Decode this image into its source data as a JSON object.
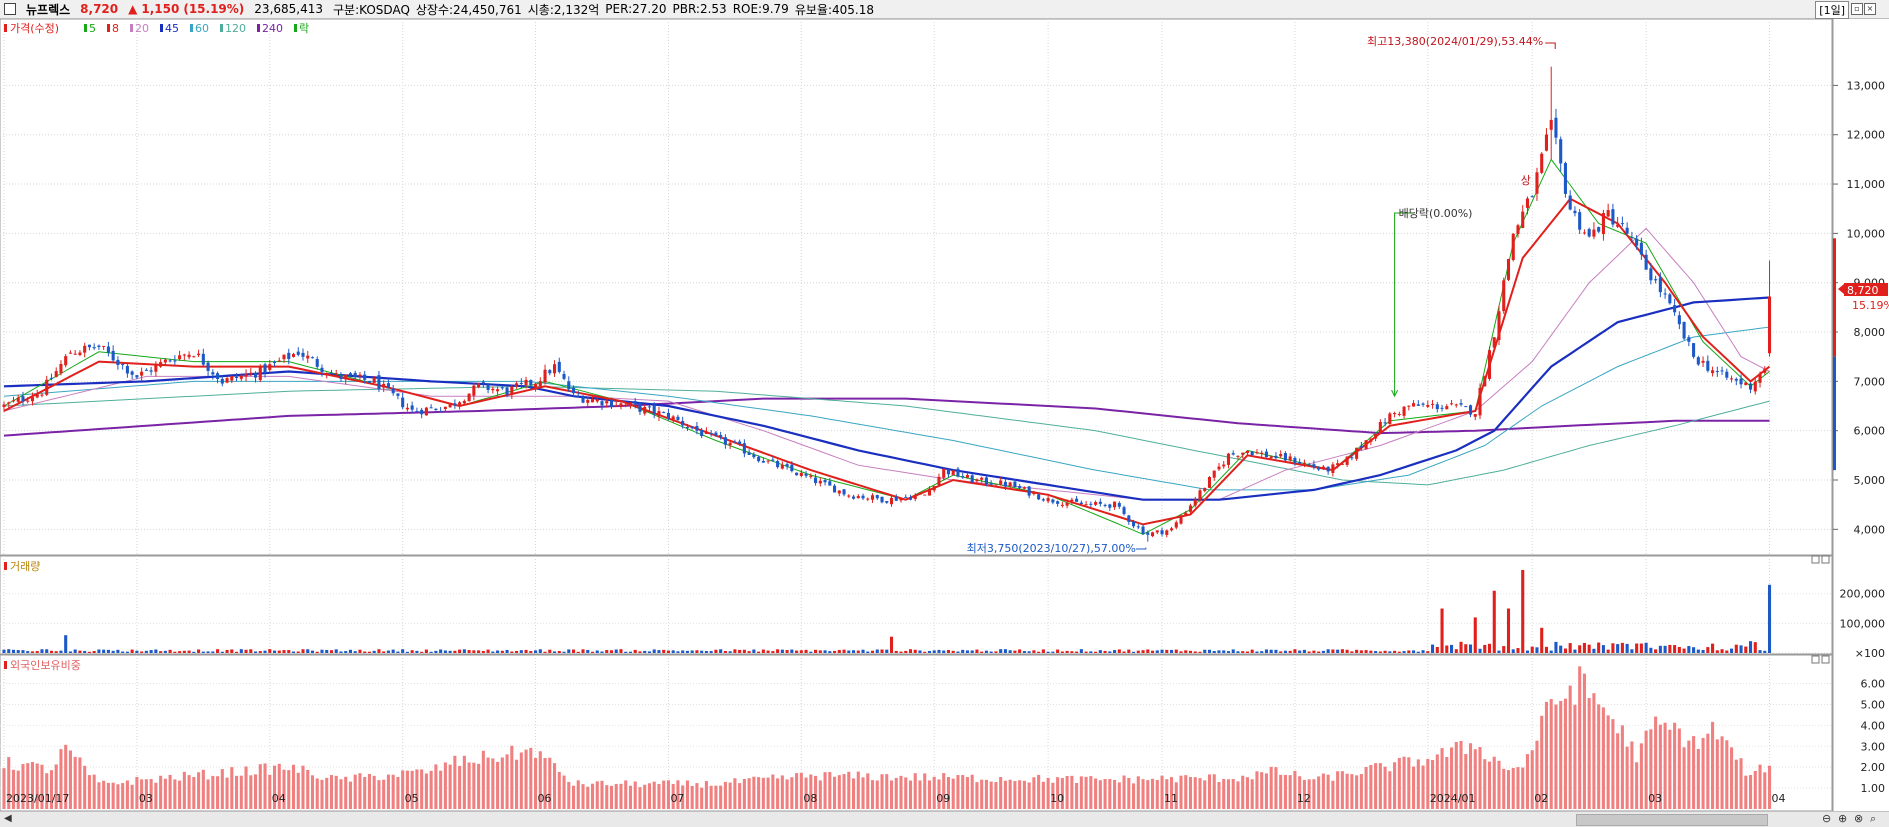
{
  "header": {
    "stock_name": "뉴프렉스",
    "price": "8,720",
    "change_arrow": "▲",
    "change": "1,150",
    "change_pct": "(15.19%)",
    "volume": "23,685,413",
    "market": "구분:KOSDAQ",
    "shares": "상장수:24,450,761",
    "market_cap": "시총:2,132억",
    "per": "PER:27.20",
    "pbr": "PBR:2.53",
    "roe": "ROE:9.79",
    "reserve": "유보율:405.18",
    "period": "[1일]"
  },
  "legend": {
    "price_label": "가격(수정)",
    "ma_items": [
      {
        "label": "5",
        "color": "#16a816"
      },
      {
        "label": "8",
        "color": "#e0201c"
      },
      {
        "label": "20",
        "color": "#c77fc0"
      },
      {
        "label": "45",
        "color": "#1a2fbf"
      },
      {
        "label": "60",
        "color": "#3aa6c2"
      },
      {
        "label": "120",
        "color": "#4fae9a"
      },
      {
        "label": "240",
        "color": "#7a23a6"
      },
      {
        "label": "락",
        "color": "#16a816"
      }
    ],
    "volume_label": "거래량",
    "foreign_label": "외국인보유비중"
  },
  "annotations": {
    "high": "최고13,380(2024/01/29),53.44%",
    "low": "최저3,750(2023/10/27),57.00%",
    "dividend": "배당락(0.00%)",
    "sang": "상"
  },
  "price_tag": {
    "price": "8,720",
    "pct": "15.19%"
  },
  "chart_data": {
    "type": "candlestick",
    "title": "",
    "y_ticks": [
      "13,000",
      "12,000",
      "11,000",
      "10,000",
      "9,000",
      "8,000",
      "7,000",
      "6,000",
      "5,000",
      "4,000"
    ],
    "y_tick_values": [
      13000,
      12000,
      11000,
      10000,
      9000,
      8000,
      7000,
      6000,
      5000,
      4000
    ],
    "ylim": [
      3500,
      13900
    ],
    "volume_ticks": [
      "200,000",
      "100,000",
      "×100"
    ],
    "volume_tick_values": [
      200000,
      100000,
      0
    ],
    "volume_ylim": [
      0,
      290000
    ],
    "foreign_ticks": [
      "6.00",
      "5.00",
      "4.00",
      "3.00",
      "2.00",
      "1.00"
    ],
    "foreign_tick_values": [
      6,
      5,
      4,
      3,
      2,
      1
    ],
    "foreign_ylim": [
      0,
      6.6
    ],
    "x_labels": [
      "2023/01/17",
      "03",
      "04",
      "05",
      "06",
      "07",
      "08",
      "09",
      "10",
      "11",
      "12",
      "2024/01",
      "02",
      "03",
      "04"
    ],
    "x_label_days": [
      0,
      28,
      56,
      84,
      112,
      140,
      168,
      196,
      220,
      244,
      272,
      300,
      322,
      346,
      372
    ],
    "high": {
      "day": 326,
      "value": 13380
    },
    "low": {
      "day": 241,
      "value": 3750
    },
    "dividend_day": 293,
    "last": {
      "day": 372,
      "close": 8720,
      "open": 7570,
      "high": 9450,
      "low": 7500
    },
    "price_keypoints": [
      [
        0,
        6500
      ],
      [
        8,
        6800
      ],
      [
        14,
        7600
      ],
      [
        20,
        7700
      ],
      [
        28,
        7100
      ],
      [
        36,
        7500
      ],
      [
        40,
        7600
      ],
      [
        46,
        7000
      ],
      [
        54,
        7200
      ],
      [
        62,
        7600
      ],
      [
        70,
        7100
      ],
      [
        78,
        7000
      ],
      [
        86,
        6400
      ],
      [
        94,
        6500
      ],
      [
        100,
        6900
      ],
      [
        106,
        6800
      ],
      [
        112,
        7000
      ],
      [
        116,
        7300
      ],
      [
        120,
        6700
      ],
      [
        126,
        6600
      ],
      [
        132,
        6500
      ],
      [
        140,
        6300
      ],
      [
        148,
        5900
      ],
      [
        154,
        5700
      ],
      [
        160,
        5400
      ],
      [
        168,
        5100
      ],
      [
        178,
        4700
      ],
      [
        186,
        4600
      ],
      [
        194,
        4700
      ],
      [
        198,
        5200
      ],
      [
        204,
        5000
      ],
      [
        212,
        4900
      ],
      [
        220,
        4600
      ],
      [
        228,
        4500
      ],
      [
        234,
        4500
      ],
      [
        238,
        4100
      ],
      [
        241,
        3900
      ],
      [
        246,
        4000
      ],
      [
        250,
        4500
      ],
      [
        258,
        5500
      ],
      [
        262,
        5600
      ],
      [
        266,
        5500
      ],
      [
        272,
        5400
      ],
      [
        278,
        5200
      ],
      [
        282,
        5300
      ],
      [
        288,
        5900
      ],
      [
        292,
        6300
      ],
      [
        296,
        6500
      ],
      [
        304,
        6500
      ],
      [
        310,
        6400
      ],
      [
        314,
        8000
      ],
      [
        318,
        10000
      ],
      [
        322,
        10800
      ],
      [
        326,
        12200
      ],
      [
        330,
        10500
      ],
      [
        334,
        9900
      ],
      [
        338,
        10400
      ],
      [
        342,
        10000
      ],
      [
        346,
        9300
      ],
      [
        350,
        8700
      ],
      [
        356,
        7500
      ],
      [
        362,
        7100
      ],
      [
        368,
        6900
      ],
      [
        371,
        7300
      ],
      [
        372,
        8720
      ]
    ],
    "ma8_keypoints": [
      [
        0,
        6400
      ],
      [
        20,
        7400
      ],
      [
        40,
        7300
      ],
      [
        60,
        7300
      ],
      [
        80,
        6900
      ],
      [
        96,
        6500
      ],
      [
        114,
        6900
      ],
      [
        130,
        6600
      ],
      [
        150,
        5900
      ],
      [
        170,
        5200
      ],
      [
        190,
        4600
      ],
      [
        200,
        5000
      ],
      [
        220,
        4700
      ],
      [
        240,
        4100
      ],
      [
        250,
        4300
      ],
      [
        262,
        5500
      ],
      [
        280,
        5200
      ],
      [
        292,
        6100
      ],
      [
        310,
        6400
      ],
      [
        320,
        9500
      ],
      [
        330,
        10700
      ],
      [
        340,
        10200
      ],
      [
        350,
        9000
      ],
      [
        358,
        7900
      ],
      [
        368,
        7000
      ],
      [
        372,
        7300
      ]
    ],
    "ma5_keypoints": [
      [
        0,
        6500
      ],
      [
        20,
        7600
      ],
      [
        40,
        7400
      ],
      [
        60,
        7400
      ],
      [
        80,
        6900
      ],
      [
        96,
        6500
      ],
      [
        114,
        7000
      ],
      [
        130,
        6600
      ],
      [
        150,
        5800
      ],
      [
        170,
        5100
      ],
      [
        190,
        4600
      ],
      [
        200,
        5100
      ],
      [
        220,
        4700
      ],
      [
        240,
        3900
      ],
      [
        250,
        4400
      ],
      [
        262,
        5600
      ],
      [
        280,
        5200
      ],
      [
        292,
        6200
      ],
      [
        310,
        6400
      ],
      [
        318,
        9800
      ],
      [
        326,
        11500
      ],
      [
        336,
        10200
      ],
      [
        346,
        9800
      ],
      [
        358,
        7800
      ],
      [
        368,
        6900
      ],
      [
        372,
        7200
      ]
    ],
    "ma20_keypoints": [
      [
        0,
        6400
      ],
      [
        30,
        7100
      ],
      [
        60,
        7100
      ],
      [
        90,
        6700
      ],
      [
        120,
        6700
      ],
      [
        140,
        6600
      ],
      [
        160,
        6000
      ],
      [
        180,
        5300
      ],
      [
        200,
        5000
      ],
      [
        220,
        4800
      ],
      [
        240,
        4600
      ],
      [
        256,
        4600
      ],
      [
        270,
        5200
      ],
      [
        290,
        5700
      ],
      [
        310,
        6400
      ],
      [
        322,
        7400
      ],
      [
        334,
        9000
      ],
      [
        346,
        10100
      ],
      [
        356,
        9000
      ],
      [
        366,
        7500
      ],
      [
        372,
        7200
      ]
    ],
    "ma45_keypoints": [
      [
        0,
        6900
      ],
      [
        30,
        7000
      ],
      [
        60,
        7200
      ],
      [
        90,
        7000
      ],
      [
        110,
        6900
      ],
      [
        120,
        6700
      ],
      [
        140,
        6500
      ],
      [
        160,
        6100
      ],
      [
        180,
        5600
      ],
      [
        200,
        5200
      ],
      [
        220,
        4900
      ],
      [
        240,
        4600
      ],
      [
        256,
        4600
      ],
      [
        276,
        4800
      ],
      [
        290,
        5100
      ],
      [
        306,
        5600
      ],
      [
        314,
        6000
      ],
      [
        326,
        7300
      ],
      [
        340,
        8200
      ],
      [
        356,
        8600
      ],
      [
        372,
        8700
      ]
    ],
    "ma60_keypoints": [
      [
        0,
        6700
      ],
      [
        40,
        7000
      ],
      [
        80,
        7000
      ],
      [
        110,
        7000
      ],
      [
        140,
        6700
      ],
      [
        170,
        6300
      ],
      [
        200,
        5800
      ],
      [
        230,
        5200
      ],
      [
        254,
        4800
      ],
      [
        276,
        4800
      ],
      [
        296,
        5100
      ],
      [
        312,
        5700
      ],
      [
        324,
        6500
      ],
      [
        340,
        7300
      ],
      [
        356,
        7900
      ],
      [
        372,
        8100
      ]
    ],
    "ma120_keypoints": [
      [
        0,
        6500
      ],
      [
        60,
        6800
      ],
      [
        110,
        6900
      ],
      [
        150,
        6800
      ],
      [
        190,
        6500
      ],
      [
        230,
        6000
      ],
      [
        256,
        5500
      ],
      [
        282,
        5000
      ],
      [
        300,
        4900
      ],
      [
        316,
        5200
      ],
      [
        334,
        5700
      ],
      [
        352,
        6100
      ],
      [
        372,
        6600
      ]
    ],
    "ma240_keypoints": [
      [
        0,
        5900
      ],
      [
        30,
        6100
      ],
      [
        60,
        6300
      ],
      [
        100,
        6400
      ],
      [
        130,
        6500
      ],
      [
        160,
        6650
      ],
      [
        190,
        6650
      ],
      [
        230,
        6450
      ],
      [
        260,
        6150
      ],
      [
        290,
        5950
      ],
      [
        310,
        6000
      ],
      [
        330,
        6100
      ],
      [
        352,
        6200
      ],
      [
        372,
        6200
      ]
    ],
    "volume_spikes": [
      [
        13,
        60000
      ],
      [
        187,
        55000
      ],
      [
        303,
        150000
      ],
      [
        310,
        120000
      ],
      [
        314,
        210000
      ],
      [
        317,
        150000
      ],
      [
        320,
        280000
      ],
      [
        324,
        85000
      ],
      [
        340,
        30000
      ],
      [
        368,
        40000
      ],
      [
        372,
        230000
      ]
    ],
    "foreign_keypoints": [
      [
        0,
        2.2
      ],
      [
        10,
        1.9
      ],
      [
        13,
        2.9
      ],
      [
        20,
        1.2
      ],
      [
        40,
        1.6
      ],
      [
        60,
        2.0
      ],
      [
        70,
        1.4
      ],
      [
        90,
        1.8
      ],
      [
        94,
        2.2
      ],
      [
        112,
        2.8
      ],
      [
        120,
        1.2
      ],
      [
        150,
        1.2
      ],
      [
        170,
        1.6
      ],
      [
        200,
        1.5
      ],
      [
        230,
        1.4
      ],
      [
        260,
        1.5
      ],
      [
        268,
        1.8
      ],
      [
        276,
        1.4
      ],
      [
        300,
        2.4
      ],
      [
        310,
        3.1
      ],
      [
        316,
        2.0
      ],
      [
        320,
        2.0
      ],
      [
        326,
        5.0
      ],
      [
        332,
        6.0
      ],
      [
        338,
        4.6
      ],
      [
        344,
        2.6
      ],
      [
        348,
        4.0
      ],
      [
        352,
        3.8
      ],
      [
        356,
        3.1
      ],
      [
        360,
        3.8
      ],
      [
        364,
        2.8
      ],
      [
        368,
        1.5
      ],
      [
        372,
        2.2
      ]
    ]
  },
  "icons": {
    "window_controls": [
      "restore-icon",
      "close-icon"
    ],
    "bottom": [
      "scroll-left-icon",
      "scroll-right-icon",
      "zoom-out-icon",
      "zoom-in-icon",
      "zoom-reset-icon"
    ]
  }
}
